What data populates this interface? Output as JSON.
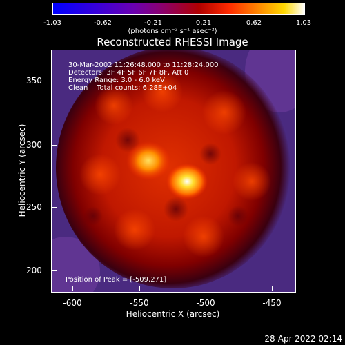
{
  "colorbar": {
    "ticks": [
      "-1.03",
      "-0.62",
      "-0.21",
      "0.21",
      "0.62",
      "1.03"
    ],
    "units": "(photons cm⁻² s⁻¹ asec⁻²)"
  },
  "title": "Reconstructed RHESSI Image",
  "info": {
    "time": "30-Mar-2002 11:26:48.000 to 11:28:24.000",
    "detectors": "Detectors: 3F 4F 5F 6F 7F 8F, Att 0",
    "energy": "Energy Range: 3.0 - 6.0 keV",
    "clean": "Clean    Total counts: 6.28E+04",
    "peak": "Position of Peak = [-509,271]"
  },
  "axes": {
    "xlabel": "Heliocentric X (arcsec)",
    "ylabel": "Heliocentric Y (arcsec)",
    "xticks": [
      "-600",
      "-550",
      "-500",
      "-450"
    ],
    "yticks": [
      "350",
      "300",
      "250",
      "200"
    ]
  },
  "timestamp": "28-Apr-2022 02:14"
}
